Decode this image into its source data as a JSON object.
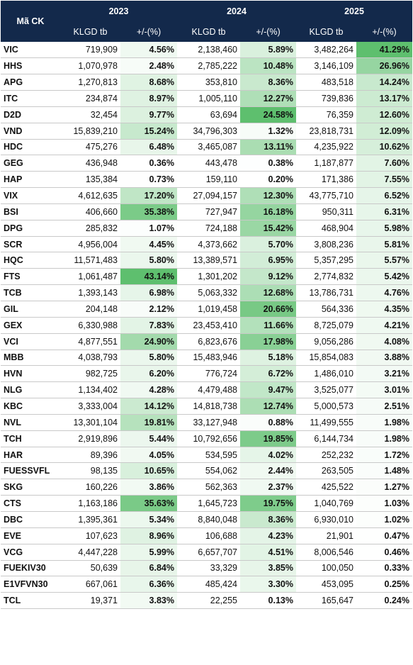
{
  "header": {
    "symbol_label": "Mã CK",
    "years": [
      "2023",
      "2024",
      "2025"
    ],
    "vol_label": "KLGD tb",
    "pct_label": "+/-(%)"
  },
  "colors": {
    "header_bg": "#13294b",
    "pct_low": "#ffffff",
    "pct_high": "#5ebf6e"
  },
  "rows": [
    {
      "symbol": "VIC",
      "v2023": "719,909",
      "p2023": "4.56%",
      "v2024": "2,138,460",
      "p2024": "5.89%",
      "v2025": "3,482,264",
      "p2025": "41.29%"
    },
    {
      "symbol": "HHS",
      "v2023": "1,070,978",
      "p2023": "2.48%",
      "v2024": "2,785,222",
      "p2024": "10.48%",
      "v2025": "3,146,109",
      "p2025": "26.96%"
    },
    {
      "symbol": "APG",
      "v2023": "1,270,813",
      "p2023": "8.68%",
      "v2024": "353,810",
      "p2024": "8.36%",
      "v2025": "483,518",
      "p2025": "14.24%"
    },
    {
      "symbol": "ITC",
      "v2023": "234,874",
      "p2023": "8.97%",
      "v2024": "1,005,110",
      "p2024": "12.27%",
      "v2025": "739,836",
      "p2025": "13.17%"
    },
    {
      "symbol": "D2D",
      "v2023": "32,454",
      "p2023": "9.77%",
      "v2024": "63,694",
      "p2024": "24.58%",
      "v2025": "76,359",
      "p2025": "12.60%"
    },
    {
      "symbol": "VND",
      "v2023": "15,839,210",
      "p2023": "15.24%",
      "v2024": "34,796,303",
      "p2024": "1.32%",
      "v2025": "23,818,731",
      "p2025": "12.09%"
    },
    {
      "symbol": "HDC",
      "v2023": "475,276",
      "p2023": "6.48%",
      "v2024": "3,465,087",
      "p2024": "13.11%",
      "v2025": "4,235,922",
      "p2025": "10.62%"
    },
    {
      "symbol": "GEG",
      "v2023": "436,948",
      "p2023": "0.36%",
      "v2024": "443,478",
      "p2024": "0.38%",
      "v2025": "1,187,877",
      "p2025": "7.60%"
    },
    {
      "symbol": "HAP",
      "v2023": "135,384",
      "p2023": "0.73%",
      "v2024": "159,110",
      "p2024": "0.20%",
      "v2025": "171,386",
      "p2025": "7.55%"
    },
    {
      "symbol": "VIX",
      "v2023": "4,612,635",
      "p2023": "17.20%",
      "v2024": "27,094,157",
      "p2024": "12.30%",
      "v2025": "43,775,710",
      "p2025": "6.52%"
    },
    {
      "symbol": "BSI",
      "v2023": "406,660",
      "p2023": "35.38%",
      "v2024": "727,947",
      "p2024": "16.18%",
      "v2025": "950,311",
      "p2025": "6.31%"
    },
    {
      "symbol": "DPG",
      "v2023": "285,832",
      "p2023": "1.07%",
      "v2024": "724,188",
      "p2024": "15.42%",
      "v2025": "468,904",
      "p2025": "5.98%"
    },
    {
      "symbol": "SCR",
      "v2023": "4,956,004",
      "p2023": "4.45%",
      "v2024": "4,373,662",
      "p2024": "5.70%",
      "v2025": "3,808,236",
      "p2025": "5.81%"
    },
    {
      "symbol": "HQC",
      "v2023": "11,571,483",
      "p2023": "5.80%",
      "v2024": "13,389,571",
      "p2024": "6.95%",
      "v2025": "5,357,295",
      "p2025": "5.57%"
    },
    {
      "symbol": "FTS",
      "v2023": "1,061,487",
      "p2023": "43.14%",
      "v2024": "1,301,202",
      "p2024": "9.12%",
      "v2025": "2,774,832",
      "p2025": "5.42%"
    },
    {
      "symbol": "TCB",
      "v2023": "1,393,143",
      "p2023": "6.98%",
      "v2024": "5,063,332",
      "p2024": "12.68%",
      "v2025": "13,786,731",
      "p2025": "4.76%"
    },
    {
      "symbol": "GIL",
      "v2023": "204,148",
      "p2023": "2.12%",
      "v2024": "1,019,458",
      "p2024": "20.66%",
      "v2025": "564,336",
      "p2025": "4.35%"
    },
    {
      "symbol": "GEX",
      "v2023": "6,330,988",
      "p2023": "7.83%",
      "v2024": "23,453,410",
      "p2024": "11.66%",
      "v2025": "8,725,079",
      "p2025": "4.21%"
    },
    {
      "symbol": "VCI",
      "v2023": "4,877,551",
      "p2023": "24.90%",
      "v2024": "6,823,676",
      "p2024": "17.98%",
      "v2025": "9,056,286",
      "p2025": "4.08%"
    },
    {
      "symbol": "MBB",
      "v2023": "4,038,793",
      "p2023": "5.80%",
      "v2024": "15,483,946",
      "p2024": "5.18%",
      "v2025": "15,854,083",
      "p2025": "3.88%"
    },
    {
      "symbol": "HVN",
      "v2023": "982,725",
      "p2023": "6.20%",
      "v2024": "776,724",
      "p2024": "6.72%",
      "v2025": "1,486,010",
      "p2025": "3.21%"
    },
    {
      "symbol": "NLG",
      "v2023": "1,134,402",
      "p2023": "4.28%",
      "v2024": "4,479,488",
      "p2024": "9.47%",
      "v2025": "3,525,077",
      "p2025": "3.01%"
    },
    {
      "symbol": "KBC",
      "v2023": "3,333,004",
      "p2023": "14.12%",
      "v2024": "14,818,738",
      "p2024": "12.74%",
      "v2025": "5,000,573",
      "p2025": "2.51%"
    },
    {
      "symbol": "NVL",
      "v2023": "13,301,104",
      "p2023": "19.81%",
      "v2024": "33,127,948",
      "p2024": "0.88%",
      "v2025": "11,499,555",
      "p2025": "1.98%"
    },
    {
      "symbol": "TCH",
      "v2023": "2,919,896",
      "p2023": "5.44%",
      "v2024": "10,792,656",
      "p2024": "19.85%",
      "v2025": "6,144,734",
      "p2025": "1.98%"
    },
    {
      "symbol": "HAR",
      "v2023": "89,396",
      "p2023": "4.05%",
      "v2024": "534,595",
      "p2024": "4.02%",
      "v2025": "252,232",
      "p2025": "1.72%"
    },
    {
      "symbol": "FUESSVFL",
      "v2023": "98,135",
      "p2023": "10.65%",
      "v2024": "554,062",
      "p2024": "2.44%",
      "v2025": "263,505",
      "p2025": "1.48%"
    },
    {
      "symbol": "SKG",
      "v2023": "160,226",
      "p2023": "3.86%",
      "v2024": "562,363",
      "p2024": "2.37%",
      "v2025": "425,522",
      "p2025": "1.27%"
    },
    {
      "symbol": "CTS",
      "v2023": "1,163,186",
      "p2023": "35.63%",
      "v2024": "1,645,723",
      "p2024": "19.75%",
      "v2025": "1,040,769",
      "p2025": "1.03%"
    },
    {
      "symbol": "DBC",
      "v2023": "1,395,361",
      "p2023": "5.34%",
      "v2024": "8,840,048",
      "p2024": "8.36%",
      "v2025": "6,930,010",
      "p2025": "1.02%"
    },
    {
      "symbol": "EVE",
      "v2023": "107,623",
      "p2023": "8.96%",
      "v2024": "106,688",
      "p2024": "4.23%",
      "v2025": "21,901",
      "p2025": "0.47%"
    },
    {
      "symbol": "VCG",
      "v2023": "4,447,228",
      "p2023": "5.99%",
      "v2024": "6,657,707",
      "p2024": "4.51%",
      "v2025": "8,006,546",
      "p2025": "0.46%"
    },
    {
      "symbol": "FUEKIV30",
      "v2023": "50,639",
      "p2023": "6.84%",
      "v2024": "33,329",
      "p2024": "3.85%",
      "v2025": "100,050",
      "p2025": "0.33%"
    },
    {
      "symbol": "E1VFVN30",
      "v2023": "667,061",
      "p2023": "6.36%",
      "v2024": "485,424",
      "p2024": "3.30%",
      "v2025": "453,095",
      "p2025": "0.25%"
    },
    {
      "symbol": "TCL",
      "v2023": "19,371",
      "p2023": "3.83%",
      "v2024": "22,255",
      "p2024": "0.13%",
      "v2025": "165,647",
      "p2025": "0.24%"
    }
  ]
}
